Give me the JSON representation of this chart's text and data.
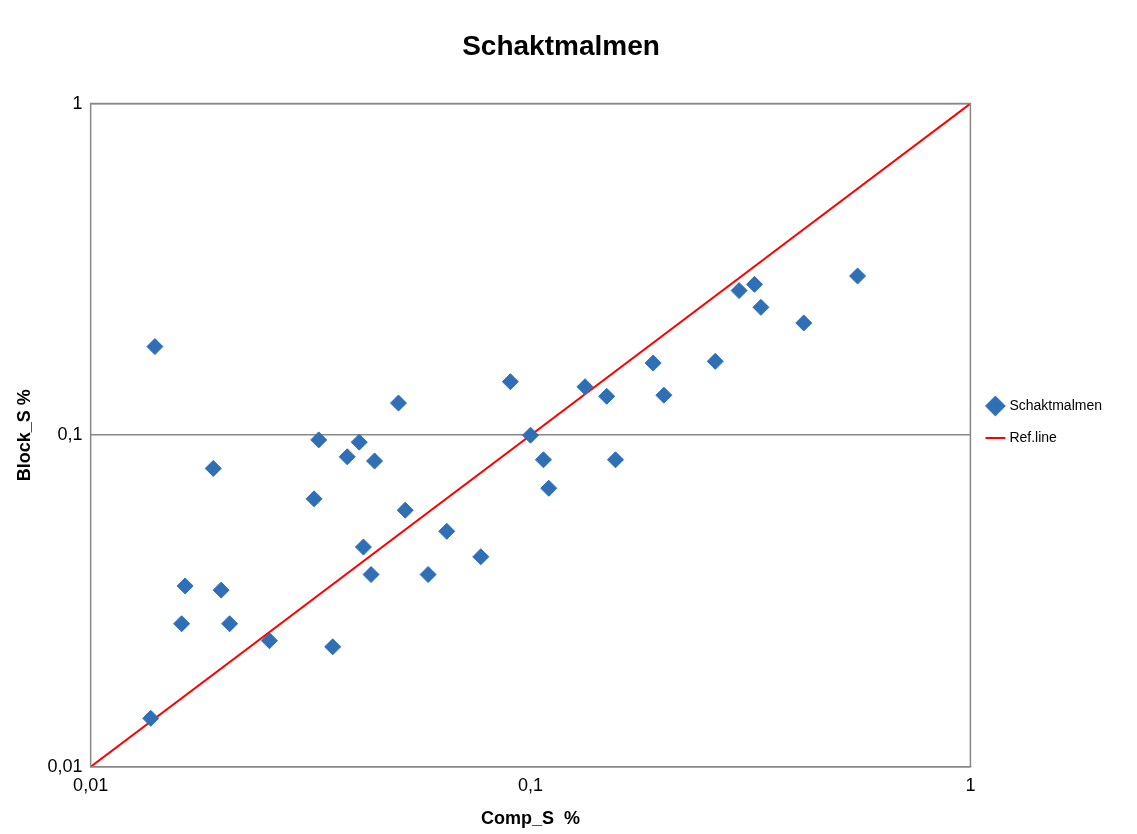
{
  "chart_data": {
    "type": "scatter",
    "title": "Schaktmalmen",
    "xlabel": "Comp_S  %",
    "ylabel": "Block_S %",
    "log": "xy",
    "grid": "y",
    "legend": "right",
    "xlim": [
      0.01,
      1
    ],
    "ylim": [
      0.01,
      1
    ],
    "xticks": [
      {
        "value": 0.01,
        "label": "0,01"
      },
      {
        "value": 0.1,
        "label": "0,1"
      },
      1
    ],
    "yticks": [
      {
        "value": 0.01,
        "label": "0,01"
      },
      {
        "value": 0.1,
        "label": "0,1"
      },
      1
    ],
    "series": [
      {
        "name": "Schaktmalmen",
        "marker": "diamond",
        "color": "#2f6fb5",
        "x": [
          0.014,
          0.0137,
          0.0161,
          0.0164,
          0.019,
          0.0198,
          0.0207,
          0.0255,
          0.0322,
          0.033,
          0.0355,
          0.0383,
          0.0408,
          0.0417,
          0.0434,
          0.0442,
          0.0501,
          0.0519,
          0.0585,
          0.0645,
          0.0771,
          0.09,
          0.1,
          0.107,
          0.11,
          0.133,
          0.149,
          0.156,
          0.19,
          0.201,
          0.263,
          0.298,
          0.323,
          0.334,
          0.418,
          0.554
        ],
        "values": [
          0.185,
          0.014,
          0.027,
          0.0351,
          0.0794,
          0.0341,
          0.027,
          0.024,
          0.0643,
          0.0968,
          0.023,
          0.0861,
          0.0953,
          0.046,
          0.038,
          0.0836,
          0.125,
          0.0594,
          0.038,
          0.0513,
          0.043,
          0.145,
          0.1,
          0.0843,
          0.0692,
          0.14,
          0.131,
          0.0843,
          0.165,
          0.132,
          0.167,
          0.273,
          0.285,
          0.243,
          0.218,
          0.302
        ]
      },
      {
        "name": "Ref.line",
        "type": "line",
        "marker": "none",
        "color": "#ff0000",
        "x": [
          0.01,
          1
        ],
        "values": [
          0.01,
          1
        ]
      }
    ]
  }
}
